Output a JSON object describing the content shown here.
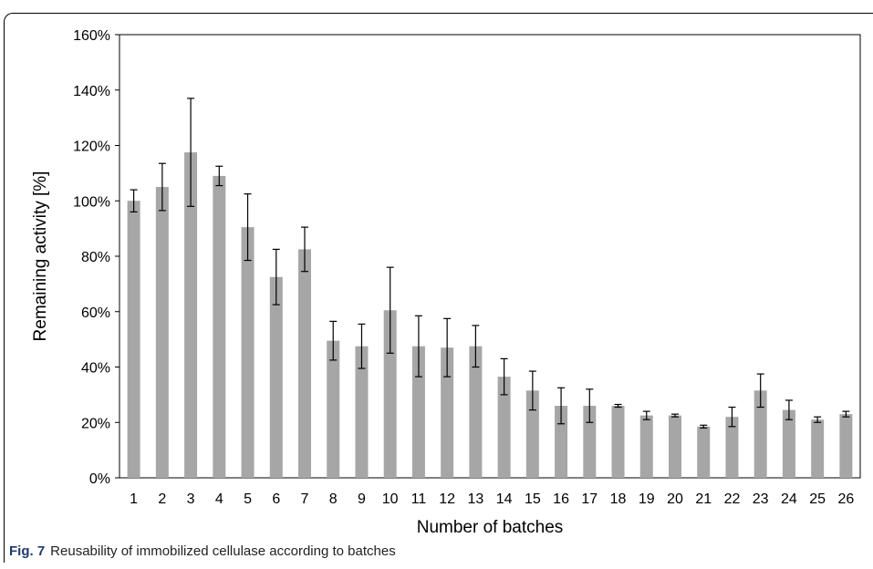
{
  "chart_data": {
    "type": "bar",
    "xlabel": "Number of batches",
    "ylabel": "Remaining activity [%]",
    "ylim": [
      0,
      160
    ],
    "yticks": [
      "0%",
      "20%",
      "40%",
      "60%",
      "80%",
      "100%",
      "120%",
      "140%",
      "160%"
    ],
    "categories": [
      "1",
      "2",
      "3",
      "4",
      "5",
      "6",
      "7",
      "8",
      "9",
      "10",
      "11",
      "12",
      "13",
      "14",
      "15",
      "16",
      "17",
      "18",
      "19",
      "20",
      "21",
      "22",
      "23",
      "24",
      "25",
      "26"
    ],
    "series": [
      {
        "values": [
          100,
          105,
          117.5,
          109,
          90.5,
          72.5,
          82.5,
          49.5,
          47.5,
          60.5,
          47.5,
          47,
          47.5,
          36.5,
          31.5,
          26,
          26,
          26,
          22.5,
          22.5,
          18.5,
          22,
          31.5,
          24.5,
          21,
          23
        ],
        "errors": [
          4,
          8.5,
          19.5,
          3.5,
          12,
          10,
          8,
          7,
          8,
          15.5,
          11,
          10.5,
          7.5,
          6.5,
          7,
          6.5,
          6,
          0.5,
          1.5,
          0.5,
          0.5,
          3.5,
          6,
          3.5,
          1,
          1
        ]
      }
    ],
    "bar_color": "#a6a6a6",
    "grid": false
  },
  "caption": {
    "label": "Fig. 7",
    "text": "Reusability of immobilized cellulase according to batches"
  }
}
